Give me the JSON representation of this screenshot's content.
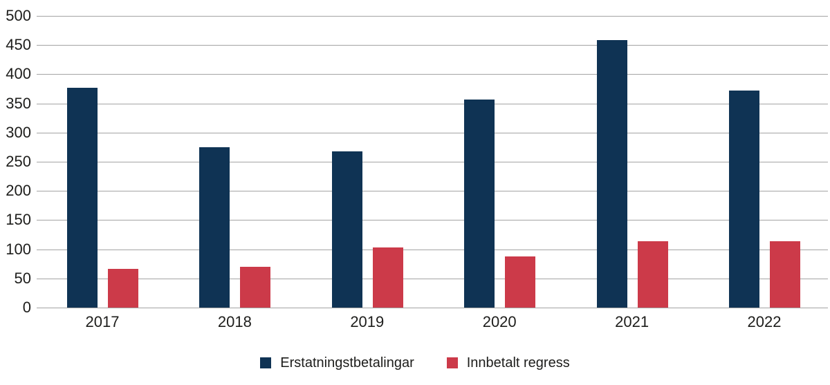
{
  "chart_data": {
    "type": "bar",
    "categories": [
      "2017",
      "2018",
      "2019",
      "2020",
      "2021",
      "2022"
    ],
    "series": [
      {
        "name": "Erstatningstbetalingar",
        "color": "#0f3354",
        "values": [
          377,
          275,
          268,
          357,
          459,
          372
        ]
      },
      {
        "name": "Innbetalt regress",
        "color": "#cc3a49",
        "values": [
          66,
          70,
          103,
          88,
          114,
          114
        ]
      }
    ],
    "title": "",
    "xlabel": "",
    "ylabel": "",
    "ylim": [
      0,
      500
    ],
    "yticks": [
      0,
      50,
      100,
      150,
      200,
      250,
      300,
      350,
      400,
      450,
      500
    ],
    "grid": "horizontal",
    "legend_position": "bottom"
  },
  "colors": {
    "background": "#ffffff",
    "gridline": "#a3a3a3",
    "axis_text": "#1d1d1b"
  }
}
